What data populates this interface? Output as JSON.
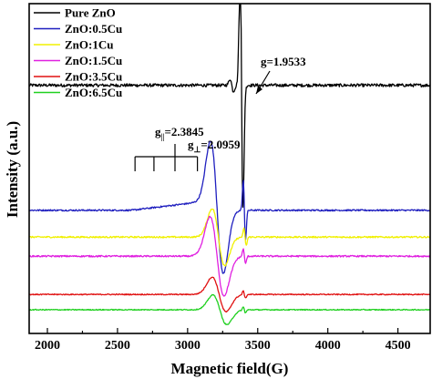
{
  "chart_data": {
    "type": "line",
    "xlabel": "Magnetic field(G)",
    "ylabel": "Intensity (a.u.)",
    "xlim": [
      1870,
      4730
    ],
    "xticks": [
      2000,
      2500,
      3000,
      3500,
      4000,
      4500
    ],
    "y_ticks_labeled": false,
    "grid": false,
    "legend_position": "top-left",
    "series": [
      {
        "name": "Pure ZnO",
        "color": "#000000",
        "baseline": 8.8,
        "noise": 0.06,
        "features": [
          {
            "kind": "deriv",
            "center": 3385,
            "width": 10,
            "amp": 5.0
          },
          {
            "kind": "deriv",
            "center": 3315,
            "width": 12,
            "amp": 0.25
          }
        ]
      },
      {
        "name": "ZnO:0.5Cu",
        "color": "#1f1fbf",
        "baseline": 3.9,
        "noise": 0.03,
        "features": [
          {
            "kind": "slope",
            "start": 2600,
            "end": 3130,
            "rise": 0.35
          },
          {
            "kind": "deriv",
            "center": 3210,
            "width": 45,
            "amp": 2.6
          },
          {
            "kind": "deriv",
            "center": 3405,
            "width": 8,
            "amp": 1.2
          }
        ]
      },
      {
        "name": "ZnO:1Cu",
        "color": "#f0f000",
        "baseline": 2.85,
        "noise": 0.03,
        "features": [
          {
            "kind": "deriv",
            "center": 3220,
            "width": 45,
            "amp": 1.15
          },
          {
            "kind": "deriv",
            "center": 3410,
            "width": 8,
            "amp": 0.35
          }
        ]
      },
      {
        "name": "ZnO:1.5Cu",
        "color": "#e020e0",
        "baseline": 2.1,
        "noise": 0.03,
        "features": [
          {
            "kind": "deriv",
            "center": 3210,
            "width": 50,
            "amp": 1.6
          },
          {
            "kind": "deriv",
            "center": 3405,
            "width": 8,
            "amp": 0.3
          }
        ]
      },
      {
        "name": "ZnO:3.5Cu",
        "color": "#e01010",
        "baseline": 0.6,
        "noise": 0.02,
        "features": [
          {
            "kind": "deriv",
            "center": 3225,
            "width": 50,
            "amp": 0.7
          },
          {
            "kind": "deriv",
            "center": 3405,
            "width": 8,
            "amp": 0.15
          }
        ]
      },
      {
        "name": "ZnO:6.5Cu",
        "color": "#20d020",
        "baseline": 0.0,
        "noise": 0.02,
        "features": [
          {
            "kind": "deriv",
            "center": 3230,
            "width": 50,
            "amp": 0.6
          },
          {
            "kind": "deriv",
            "center": 3405,
            "width": 8,
            "amp": 0.12
          }
        ]
      }
    ],
    "annotations": {
      "g_perp_label": "g=1.9533",
      "g_parallel_main": "g",
      "g_parallel_sub": "||",
      "g_parallel_value": "=2.3845",
      "g_perp_main": "g",
      "g_perp_sub": "⊥",
      "g_perp_value": "=2.0959",
      "bracket_fields": [
        2625,
        2760,
        2910,
        3070
      ]
    }
  }
}
